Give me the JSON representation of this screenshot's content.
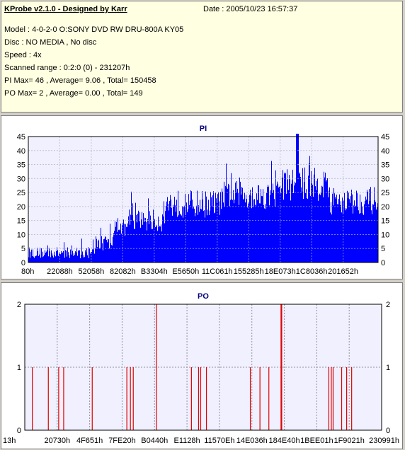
{
  "header": {
    "title": "KProbe v2.1.0 - Designed by Karr",
    "date": "Date : 2005/10/23 16:57:37",
    "model": "Model : 4-0-2-0 O:SONY    DVD RW DRU-800A  KY05",
    "disc": "Disc : NO MEDIA , No disc",
    "speed": "Speed : 4x",
    "range": "Scanned range : 0:2:0 (0) - 231207h",
    "pi_summary": "PI Max= 46 , Average= 9.06 , Total= 150458",
    "po_summary": "PO Max= 2 , Average= 0.00 , Total= 149"
  },
  "colors": {
    "pi_fill": "#0000ff",
    "po_bar": "#e00000",
    "title": "#000080",
    "plot_bg": "#f0f0ff"
  },
  "chart_data": [
    {
      "type": "area",
      "title": "PI",
      "xlabel": "",
      "ylabel": "",
      "ylim": [
        0,
        45
      ],
      "yticks": [
        0,
        5,
        10,
        15,
        20,
        25,
        30,
        35,
        40,
        45
      ],
      "grid": true,
      "xticks": [
        "80h",
        "22088h",
        "52058h",
        "82082h",
        "B3304h",
        "E5650h",
        "11C061h",
        "155285h",
        "18E073h",
        "1C8036h",
        "201652h"
      ],
      "segments": [
        {
          "x_from": 0.0,
          "x_to": 0.19,
          "mean": 3.5,
          "range": 2
        },
        {
          "x_from": 0.19,
          "x_to": 0.24,
          "mean": 7,
          "range": 3
        },
        {
          "x_from": 0.24,
          "x_to": 0.28,
          "mean": 12,
          "range": 3
        },
        {
          "x_from": 0.28,
          "x_to": 0.39,
          "mean": 15,
          "range": 4
        },
        {
          "x_from": 0.39,
          "x_to": 0.55,
          "mean": 21,
          "range": 5
        },
        {
          "x_from": 0.55,
          "x_to": 0.72,
          "mean": 24,
          "range": 5
        },
        {
          "x_from": 0.72,
          "x_to": 0.86,
          "mean": 28,
          "range": 6
        },
        {
          "x_from": 0.86,
          "x_to": 1.0,
          "mean": 22,
          "range": 5
        }
      ],
      "max": 46,
      "max_position": 0.77
    },
    {
      "type": "bar",
      "title": "PO",
      "xlabel": "",
      "ylabel": "",
      "ylim": [
        0,
        2
      ],
      "yticks": [
        0,
        1,
        2
      ],
      "grid": true,
      "xticks": [
        "13h",
        "20730h",
        "4F651h",
        "7FE20h",
        "B0440h",
        "E1128h",
        "11570Eh",
        "14E036h",
        "184E40h",
        "1BEE01h",
        "1F9021h",
        "230991h"
      ],
      "points": [
        {
          "x": 0.021,
          "y": 1
        },
        {
          "x": 0.066,
          "y": 1
        },
        {
          "x": 0.095,
          "y": 1
        },
        {
          "x": 0.109,
          "y": 1
        },
        {
          "x": 0.189,
          "y": 1
        },
        {
          "x": 0.286,
          "y": 1
        },
        {
          "x": 0.296,
          "y": 1
        },
        {
          "x": 0.304,
          "y": 1
        },
        {
          "x": 0.369,
          "y": 2
        },
        {
          "x": 0.467,
          "y": 1
        },
        {
          "x": 0.487,
          "y": 1
        },
        {
          "x": 0.493,
          "y": 1
        },
        {
          "x": 0.509,
          "y": 1
        },
        {
          "x": 0.632,
          "y": 1
        },
        {
          "x": 0.659,
          "y": 1
        },
        {
          "x": 0.684,
          "y": 1
        },
        {
          "x": 0.718,
          "y": 2
        },
        {
          "x": 0.72,
          "y": 2
        },
        {
          "x": 0.852,
          "y": 1
        },
        {
          "x": 0.859,
          "y": 1
        },
        {
          "x": 0.864,
          "y": 1
        },
        {
          "x": 0.888,
          "y": 1
        },
        {
          "x": 0.902,
          "y": 1
        },
        {
          "x": 0.916,
          "y": 1
        }
      ]
    }
  ]
}
